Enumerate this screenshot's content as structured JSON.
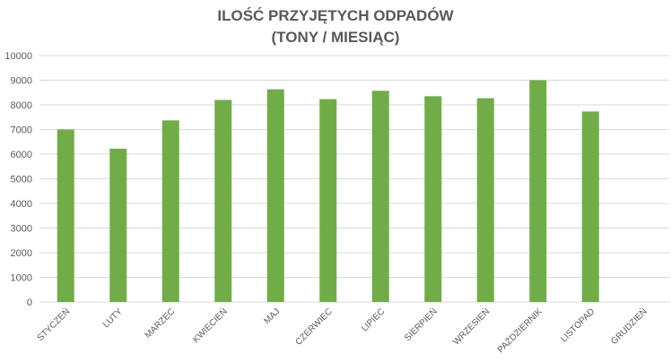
{
  "chart_data": {
    "type": "bar",
    "title": "ILOŚĆ PRZYJĘTYCH ODPADÓW",
    "subtitle": "(TONY / MIESIĄC)",
    "xlabel": "",
    "ylabel": "",
    "ylim": [
      0,
      10000
    ],
    "yticks": [
      0,
      1000,
      2000,
      3000,
      4000,
      5000,
      6000,
      7000,
      8000,
      9000,
      10000
    ],
    "grid": true,
    "legend": "none",
    "categories": [
      "STYCZEŃ",
      "LUTY",
      "MARZEC",
      "KWIECIEŃ",
      "MAJ",
      "CZERWIEC",
      "LIPIEC",
      "SIERPIEŃ",
      "WRZESIEŃ",
      "PAŹDZIERNIK",
      "LISTOPAD",
      "GRUDZIEŃ"
    ],
    "values": [
      7000,
      6220,
      7370,
      8200,
      8630,
      8230,
      8570,
      8350,
      8270,
      9000,
      7730,
      null
    ]
  },
  "colors": {
    "bar": "#70AD47",
    "grid": "#D9D9D9",
    "text": "#595959",
    "background": "#FFFFFF"
  }
}
